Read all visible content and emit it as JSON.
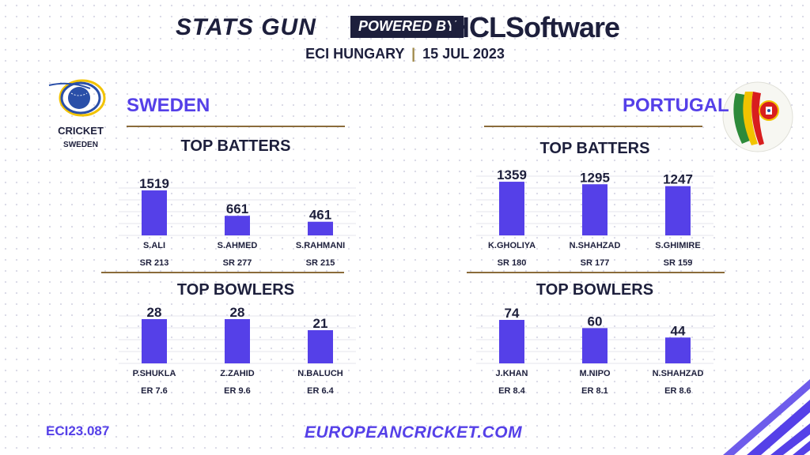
{
  "header": {
    "brand": "STATS GUN",
    "powered_by": "POWERED BY",
    "sponsor": "HCLSoftware",
    "event": "ECI HUNGARY",
    "separator": "|",
    "date": "15 JUL 2023"
  },
  "logos": {
    "sweden_text_1": "CRICKET",
    "sweden_text_2": "SWEDEN"
  },
  "teams": {
    "sweden": {
      "name": "SWEDEN"
    },
    "portugal": {
      "name": "PORTUGAL"
    }
  },
  "labels": {
    "top_batters": "TOP BATTERS",
    "top_bowlers": "TOP BOWLERS"
  },
  "footer": {
    "code": "ECI23.087",
    "url": "EUROPEANCRICKET.COM"
  },
  "colors": {
    "bar": "#5540e8",
    "navy": "#1d1f3c",
    "gold": "#8a6b3a"
  },
  "chart_data": [
    {
      "type": "bar",
      "title": "TOP BATTERS",
      "team": "SWEDEN",
      "categories": [
        "S.ALI",
        "S.AHMED",
        "S.RAHMANI"
      ],
      "values": [
        1519,
        661,
        461
      ],
      "sublabels": [
        "SR 213",
        "SR 277",
        "SR 215"
      ],
      "ylim": [
        0,
        1600
      ]
    },
    {
      "type": "bar",
      "title": "TOP BOWLERS",
      "team": "SWEDEN",
      "categories": [
        "P.SHUKLA",
        "Z.ZAHID",
        "N.BALUCH"
      ],
      "values": [
        28,
        28,
        21
      ],
      "sublabels": [
        "ER 7.6",
        "ER 9.6",
        "ER 6.4"
      ],
      "ylim": [
        0,
        30
      ]
    },
    {
      "type": "bar",
      "title": "TOP BATTERS",
      "team": "PORTUGAL",
      "categories": [
        "K.GHOLIYA",
        "N.SHAHZAD",
        "S.GHIMIRE"
      ],
      "values": [
        1359,
        1295,
        1247
      ],
      "sublabels": [
        "SR 180",
        "SR 177",
        "SR 159"
      ],
      "ylim": [
        0,
        1400
      ]
    },
    {
      "type": "bar",
      "title": "TOP BOWLERS",
      "team": "PORTUGAL",
      "categories": [
        "J.KHAN",
        "M.NIPO",
        "N.SHAHZAD"
      ],
      "values": [
        74,
        60,
        44
      ],
      "sublabels": [
        "ER 8.4",
        "ER 8.1",
        "ER 8.6"
      ],
      "ylim": [
        0,
        78
      ]
    }
  ]
}
